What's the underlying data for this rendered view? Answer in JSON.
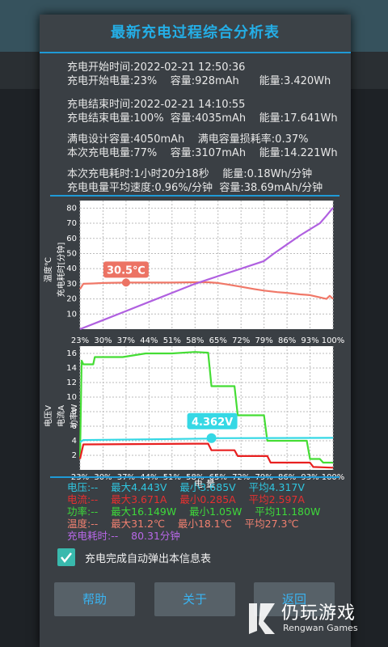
{
  "title": "最新充电过程综合分析表",
  "info": {
    "start_time": "充电开始时间:2022-02-21 12:50:36",
    "start_level": "充电开始电量:23%    容量:928mAh      能量:3.420Wh",
    "end_time": "充电结束时间:2022-02-21 14:10:55",
    "end_level": "充电结束电量:100%  容量:4035mAh    能量:17.641Wh",
    "design": "满电设计容量:4050mAh    满电容量损耗率:0.37%",
    "this_charge": "本次充电电量:77%    容量:3107mAh    能量:14.221Wh",
    "duration": "本次充电耗时:1小时20分18秒    能量:0.18Wh/分钟",
    "avg_speed": "充电电量平均速度:0.96%/分钟  容量:38.69mAh/分钟"
  },
  "chart_data": [
    {
      "type": "line",
      "y_axis_labels": [
        "温度℃",
        "充电耗时[分钟]"
      ],
      "ylim": [
        0,
        85
      ],
      "yticks": [
        10,
        20,
        30,
        40,
        50,
        60,
        70,
        80
      ],
      "x_ticks": [
        "23%",
        "30%",
        "37%",
        "44%",
        "51%",
        "58%",
        "65%",
        "72%",
        "79%",
        "86%",
        "93%",
        "100%"
      ],
      "series": [
        {
          "color": "#f07868",
          "x": [
            23,
            24,
            27,
            30,
            37,
            44,
            51,
            58,
            62,
            65,
            68,
            72,
            76,
            79,
            83,
            86,
            90,
            93,
            96,
            98,
            99,
            100
          ],
          "values": [
            26.5,
            30,
            30.2,
            30.5,
            30.8,
            30.8,
            30.8,
            31,
            31,
            30.5,
            29.5,
            28,
            26.5,
            25.5,
            24.5,
            24,
            23,
            22.5,
            21,
            20,
            22,
            20
          ]
        },
        {
          "color": "#b060e0",
          "x": [
            23,
            30,
            37,
            44,
            51,
            58,
            65,
            72,
            79,
            82,
            86,
            90,
            93,
            96,
            98,
            100
          ],
          "values": [
            0,
            6,
            12,
            18,
            24,
            30,
            35,
            40,
            45,
            50,
            56,
            62,
            66,
            70,
            75,
            80.31
          ]
        }
      ],
      "annotation": "30.5℃"
    },
    {
      "type": "line",
      "y_axis_labels": [
        "电压V",
        "电流A",
        "功率W"
      ],
      "ylim": [
        0,
        17
      ],
      "yticks": [
        2,
        4,
        6,
        8,
        10,
        12,
        14,
        16
      ],
      "x_ticks": [
        "23%",
        "30%",
        "37%",
        "44%",
        "51%",
        "58%",
        "65%",
        "72%",
        "79%",
        "86%",
        "93%",
        "100%"
      ],
      "xlabel": "电量",
      "series": [
        {
          "color": "#45dd35",
          "x": [
            23,
            23.5,
            24,
            27,
            27.5,
            36,
            43,
            51,
            58,
            62,
            63,
            70,
            71,
            79,
            80,
            81,
            92,
            93,
            96,
            97,
            100
          ],
          "values": [
            1.5,
            15,
            14.5,
            14.5,
            15.5,
            15.5,
            16,
            16,
            16.2,
            16.1,
            11.5,
            11.5,
            7.5,
            7.5,
            4,
            4,
            4,
            1.5,
            1.5,
            1,
            1
          ]
        },
        {
          "color": "#35d8e5",
          "x": [
            23,
            24,
            44,
            62,
            63,
            100
          ],
          "values": [
            3.8,
            4.1,
            4.2,
            4.3,
            4.36,
            4.4
          ]
        },
        {
          "color": "#e82020",
          "x": [
            23,
            24,
            58,
            62,
            63,
            70,
            71,
            80,
            81,
            93,
            94,
            100
          ],
          "values": [
            1.5,
            3.5,
            3.6,
            3.6,
            2.7,
            2.7,
            1.9,
            1.9,
            1,
            1,
            0.4,
            0.3
          ]
        }
      ],
      "annotation": "4.362V"
    }
  ],
  "stats": {
    "voltage": "电压:--    最大4.443V    最小3.685V    平均4.317V",
    "current": "电流:--    最大3.671A    最小0.285A    平均2.597A",
    "power": "功率:--    最大16.149W    最小1.05W    平均11.180W",
    "temp": "温度:--    最大31.2℃    最小18.1℃    平均27.3℃",
    "time": "充电耗时:--    80.31分钟"
  },
  "checkbox_label": "充电完成自动弹出本信息表",
  "buttons": {
    "help": "帮助",
    "about": "关于",
    "back": "返回"
  },
  "watermark": {
    "title": "仍玩游戏",
    "subtitle": "Rengwan Games"
  }
}
